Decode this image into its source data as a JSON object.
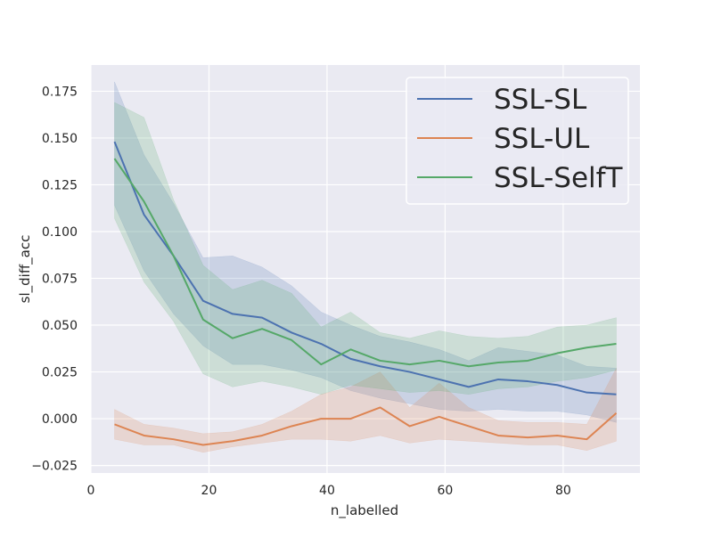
{
  "chart_data": {
    "type": "line",
    "title": "",
    "xlabel": "n_labelled",
    "ylabel": "sl_diff_acc",
    "xlim": [
      0,
      93
    ],
    "ylim": [
      -0.029,
      0.189
    ],
    "xticks": [
      0,
      20,
      40,
      60,
      80
    ],
    "xtick_labels": [
      "0",
      "20",
      "40",
      "60",
      "80"
    ],
    "yticks": [
      -0.025,
      0.0,
      0.025,
      0.05,
      0.075,
      0.1,
      0.125,
      0.15,
      0.175
    ],
    "ytick_labels": [
      "−0.025",
      "0.000",
      "0.025",
      "0.050",
      "0.075",
      "0.100",
      "0.125",
      "0.150",
      "0.175"
    ],
    "grid": true,
    "legend_position": "top-right",
    "x": [
      4,
      9,
      14,
      19,
      24,
      29,
      34,
      39,
      44,
      49,
      54,
      59,
      64,
      69,
      74,
      79,
      84,
      89
    ],
    "series": [
      {
        "name": "SSL-SL",
        "color": "#4c72b0",
        "values": [
          0.148,
          0.109,
          0.087,
          0.063,
          0.056,
          0.054,
          0.046,
          0.04,
          0.032,
          0.028,
          0.025,
          0.021,
          0.017,
          0.021,
          0.02,
          0.018,
          0.014,
          0.013
        ],
        "lower": [
          0.114,
          0.079,
          0.056,
          0.039,
          0.029,
          0.029,
          0.026,
          0.022,
          0.015,
          0.011,
          0.008,
          0.005,
          0.004,
          0.005,
          0.004,
          0.004,
          0.002,
          -0.002
        ],
        "upper": [
          0.18,
          0.141,
          0.115,
          0.086,
          0.087,
          0.081,
          0.071,
          0.057,
          0.05,
          0.044,
          0.041,
          0.037,
          0.031,
          0.038,
          0.036,
          0.034,
          0.028,
          0.027
        ]
      },
      {
        "name": "SSL-UL",
        "color": "#dd8452",
        "values": [
          -0.003,
          -0.009,
          -0.011,
          -0.014,
          -0.012,
          -0.009,
          -0.004,
          0.0,
          0.0,
          0.006,
          -0.004,
          0.001,
          -0.004,
          -0.009,
          -0.01,
          -0.009,
          -0.011,
          0.003
        ],
        "lower": [
          -0.011,
          -0.014,
          -0.014,
          -0.018,
          -0.015,
          -0.013,
          -0.011,
          -0.011,
          -0.012,
          -0.009,
          -0.013,
          -0.011,
          -0.012,
          -0.013,
          -0.014,
          -0.014,
          -0.017,
          -0.012
        ],
        "upper": [
          0.005,
          -0.003,
          -0.005,
          -0.008,
          -0.007,
          -0.003,
          0.004,
          0.013,
          0.017,
          0.025,
          0.006,
          0.019,
          0.006,
          -0.001,
          -0.002,
          -0.002,
          -0.003,
          0.027
        ]
      },
      {
        "name": "SSL-SelfT",
        "color": "#55a868",
        "values": [
          0.139,
          0.116,
          0.087,
          0.053,
          0.043,
          0.048,
          0.042,
          0.029,
          0.037,
          0.031,
          0.029,
          0.031,
          0.028,
          0.03,
          0.031,
          0.035,
          0.038,
          0.04
        ],
        "lower": [
          0.107,
          0.073,
          0.052,
          0.024,
          0.017,
          0.02,
          0.017,
          0.013,
          0.018,
          0.016,
          0.014,
          0.015,
          0.013,
          0.016,
          0.017,
          0.02,
          0.022,
          0.026
        ],
        "upper": [
          0.169,
          0.161,
          0.117,
          0.082,
          0.069,
          0.074,
          0.067,
          0.049,
          0.057,
          0.046,
          0.043,
          0.047,
          0.044,
          0.043,
          0.044,
          0.049,
          0.05,
          0.054
        ]
      }
    ]
  }
}
